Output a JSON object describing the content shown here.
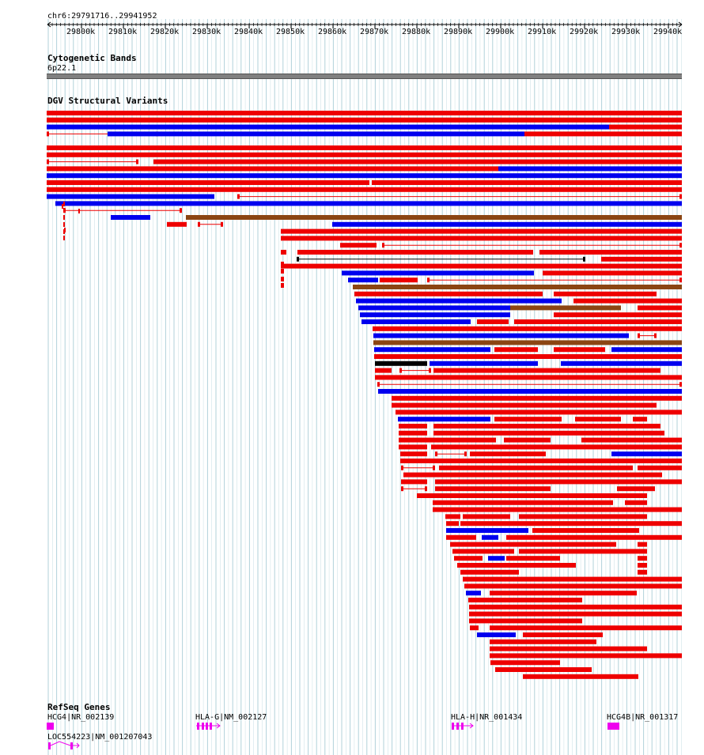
{
  "ruler": {
    "region_label": "chr6:29791716..29941952",
    "ticks": [
      "29800k",
      "29810k",
      "29820k",
      "29830k",
      "29840k",
      "29850k",
      "29860k",
      "29870k",
      "29880k",
      "29890k",
      "29900k",
      "29910k",
      "29920k",
      "29930k",
      "29940k"
    ]
  },
  "tracks": {
    "cytoband_title": "Cytogenetic Bands",
    "cytoband_label": "6p22.1",
    "dgv_title": "DGV Structural Variants",
    "refseq_title": "RefSeq Genes"
  },
  "colors": {
    "gain": "#ee0000",
    "loss": "#0000ee",
    "both": "#8b4513",
    "other": "#000000",
    "gene": "#ee00ee",
    "grid": "#a9cdd6",
    "band": "#808080"
  },
  "genes": [
    {
      "label": "HCG4|NR_002139"
    },
    {
      "label": "HLA-G|NM_002127"
    },
    {
      "label": "HLA-H|NR_001434"
    },
    {
      "label": "HCG4B|NR_001317"
    },
    {
      "label": "LOC554223|NM_001207043"
    }
  ]
}
